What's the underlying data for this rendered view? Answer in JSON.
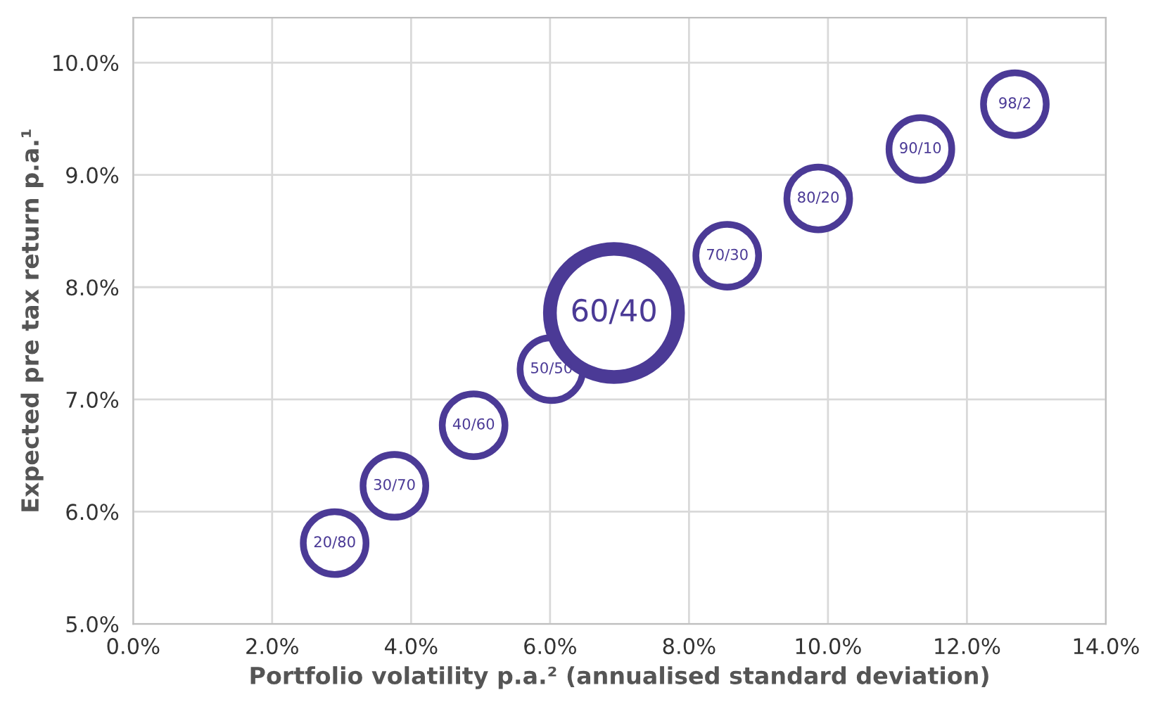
{
  "chart_data": {
    "type": "bubble",
    "xlabel": "Portfolio volatility p.a.² (annualised standard deviation)",
    "ylabel": "Expected pre tax return p.a.¹",
    "x": [
      2.9,
      3.76,
      4.9,
      6.02,
      6.92,
      8.55,
      9.86,
      11.33,
      12.69
    ],
    "series": [
      {
        "color": "#4b3a96",
        "values": [
          5.72,
          6.23,
          6.77,
          7.27,
          7.77,
          8.28,
          8.79,
          9.23,
          9.63
        ],
        "sizes": [
          0.24,
          0.24,
          0.24,
          0.24,
          1,
          0.24,
          0.24,
          0.24,
          0.24
        ]
      }
    ],
    "annotations": [
      {
        "text": "20/80",
        "x": 2.9,
        "y": 5.72
      },
      {
        "text": "30/70",
        "x": 3.76,
        "y": 6.23
      },
      {
        "text": "40/60",
        "x": 4.9,
        "y": 6.77
      },
      {
        "text": "50/50",
        "x": 6.02,
        "y": 7.27
      },
      {
        "text": "60/40",
        "x": 6.92,
        "y": 7.77
      },
      {
        "text": "70/30",
        "x": 8.55,
        "y": 8.28
      },
      {
        "text": "80/20",
        "x": 9.86,
        "y": 8.79
      },
      {
        "text": "90/10",
        "x": 11.33,
        "y": 9.23
      },
      {
        "text": "98/2",
        "x": 12.69,
        "y": 9.63
      }
    ],
    "xlim": [
      0,
      14
    ],
    "xticks": [
      {
        "value": 0,
        "label": "0.0%"
      },
      {
        "value": 2,
        "label": "2.0%"
      },
      {
        "value": 4,
        "label": "4.0%"
      },
      {
        "value": 6,
        "label": "6.0%"
      },
      {
        "value": 8,
        "label": "8.0%"
      },
      {
        "value": 10,
        "label": "10.0%"
      },
      {
        "value": 12,
        "label": "12.0%"
      },
      {
        "value": 14,
        "label": "14.0%"
      }
    ],
    "ylim": [
      5,
      10.4
    ],
    "yticks": [
      {
        "value": 5,
        "label": "5.0%"
      },
      {
        "value": 6,
        "label": "6.0%"
      },
      {
        "value": 7,
        "label": "7.0%"
      },
      {
        "value": 8,
        "label": "8.0%"
      },
      {
        "value": 9,
        "label": "9.0%"
      },
      {
        "value": 10,
        "label": "10.0%"
      }
    ],
    "grid": true,
    "marker": "circle"
  }
}
